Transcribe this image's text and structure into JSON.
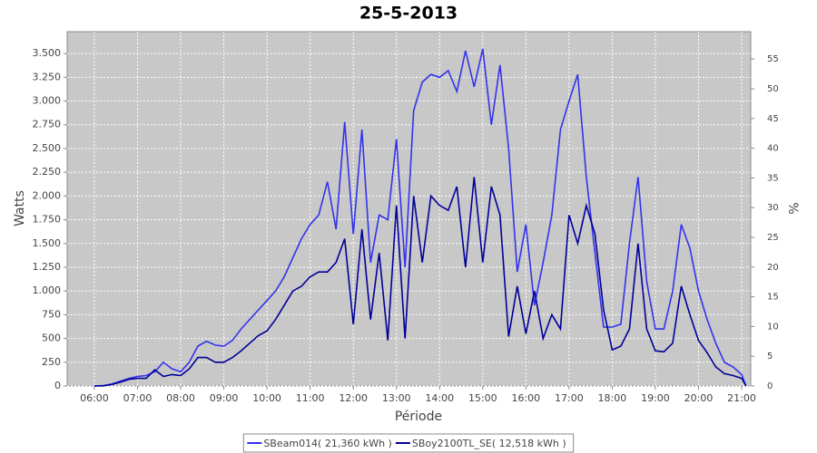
{
  "chart_data": {
    "type": "line",
    "title": "25-5-2013",
    "x_label": "Période",
    "y_label": "Watts",
    "y2_label": "%",
    "x": [
      6.0,
      6.2,
      6.4,
      6.6,
      6.8,
      7.0,
      7.2,
      7.4,
      7.6,
      7.8,
      8.0,
      8.2,
      8.4,
      8.6,
      8.8,
      9.0,
      9.2,
      9.4,
      9.6,
      9.8,
      10.0,
      10.2,
      10.4,
      10.6,
      10.8,
      11.0,
      11.2,
      11.4,
      11.6,
      11.8,
      12.0,
      12.2,
      12.4,
      12.6,
      12.8,
      13.0,
      13.2,
      13.4,
      13.6,
      13.8,
      14.0,
      14.2,
      14.4,
      14.6,
      14.8,
      15.0,
      15.2,
      15.4,
      15.6,
      15.8,
      16.0,
      16.2,
      16.4,
      16.6,
      16.8,
      17.0,
      17.2,
      17.4,
      17.6,
      17.8,
      18.0,
      18.2,
      18.4,
      18.6,
      18.8,
      19.0,
      19.2,
      19.4,
      19.6,
      19.8,
      20.0,
      20.2,
      20.4,
      20.6,
      20.8,
      21.0,
      21.1
    ],
    "series": [
      {
        "name": "SBeam014( 21,360 kWh )",
        "color": "#3333ee",
        "values": [
          0,
          5,
          20,
          50,
          80,
          100,
          110,
          150,
          250,
          180,
          150,
          250,
          420,
          470,
          430,
          420,
          480,
          600,
          700,
          800,
          900,
          1000,
          1150,
          1350,
          1550,
          1700,
          1800,
          2150,
          1650,
          2780,
          1600,
          2700,
          1300,
          1800,
          1750,
          2600,
          1250,
          2900,
          3200,
          3280,
          3250,
          3320,
          3100,
          3530,
          3150,
          3550,
          2750,
          3380,
          2500,
          1200,
          1700,
          850,
          1300,
          1800,
          2700,
          3000,
          3280,
          2200,
          1400,
          620,
          620,
          650,
          1500,
          2200,
          1100,
          600,
          600,
          1000,
          1700,
          1450,
          1000,
          700,
          450,
          250,
          200,
          120,
          0
        ]
      },
      {
        "name": "SBoy2100TL_SE( 12,518 kWh )",
        "color": "#000099",
        "values": [
          0,
          0,
          15,
          40,
          70,
          80,
          80,
          170,
          100,
          120,
          110,
          180,
          300,
          300,
          250,
          250,
          300,
          370,
          450,
          530,
          580,
          700,
          850,
          1000,
          1050,
          1150,
          1200,
          1200,
          1300,
          1550,
          650,
          1650,
          700,
          1400,
          480,
          1900,
          500,
          2000,
          1300,
          2000,
          1900,
          1850,
          2100,
          1250,
          2200,
          1300,
          2100,
          1800,
          520,
          1050,
          550,
          1000,
          500,
          750,
          600,
          1800,
          1500,
          1900,
          1600,
          800,
          380,
          420,
          600,
          1500,
          600,
          370,
          360,
          450,
          1050,
          750,
          480,
          350,
          200,
          130,
          110,
          80,
          0
        ]
      }
    ],
    "xlim": [
      5.37,
      21.21
    ],
    "xticks": [
      {
        "value": 6,
        "label": "06:00"
      },
      {
        "value": 7,
        "label": "07:00"
      },
      {
        "value": 8,
        "label": "08:00"
      },
      {
        "value": 9,
        "label": "09:00"
      },
      {
        "value": 10,
        "label": "10:00"
      },
      {
        "value": 11,
        "label": "11:00"
      },
      {
        "value": 12,
        "label": "12:00"
      },
      {
        "value": 13,
        "label": "13:00"
      },
      {
        "value": 14,
        "label": "14:00"
      },
      {
        "value": 15,
        "label": "15:00"
      },
      {
        "value": 16,
        "label": "16:00"
      },
      {
        "value": 17,
        "label": "17:00"
      },
      {
        "value": 18,
        "label": "18:00"
      },
      {
        "value": 19,
        "label": "19:00"
      },
      {
        "value": 20,
        "label": "20:00"
      },
      {
        "value": 21,
        "label": "21:00"
      }
    ],
    "ylim": [
      0,
      3730
    ],
    "yticks": [
      0,
      250,
      500,
      750,
      {
        "value": 1000,
        "label": "1.000"
      },
      {
        "value": 1250,
        "label": "1.250"
      },
      {
        "value": 1500,
        "label": "1.500"
      },
      {
        "value": 1750,
        "label": "1.750"
      },
      {
        "value": 2000,
        "label": "2.000"
      },
      {
        "value": 2250,
        "label": "2.250"
      },
      {
        "value": 2500,
        "label": "2.500"
      },
      {
        "value": 2750,
        "label": "2.750"
      },
      {
        "value": 3000,
        "label": "3.000"
      },
      {
        "value": 3250,
        "label": "3.250"
      },
      {
        "value": 3500,
        "label": "3.500"
      }
    ],
    "y2lim": [
      0,
      59.6
    ],
    "y2ticks": [
      0,
      5,
      10,
      15,
      20,
      25,
      30,
      35,
      40,
      45,
      50,
      55
    ],
    "grid": true,
    "plot_background": "#c8c8c8",
    "legend": "bottom"
  }
}
